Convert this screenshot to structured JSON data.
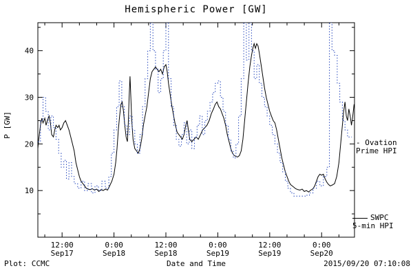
{
  "footer": {
    "left": "Plot: CCMC",
    "right": "2015/09/20 07:10:08"
  },
  "legend": {
    "ovation": {
      "line1": "- Ovation",
      "line2": "Prime HPI",
      "color": "#2244bb"
    },
    "swpc": {
      "line1": "SWPC",
      "line2": "5-min HPI",
      "color": "#000000"
    }
  },
  "chart_data": {
    "type": "line",
    "title": "Hemispheric Power [GW]",
    "xlabel": "Date and Time",
    "ylabel": "P [GW]",
    "x_unit": "hours since Sep17 00:00",
    "xlim_hours": [
      6.4,
      79.6
    ],
    "ylim": [
      0,
      46
    ],
    "grid": false,
    "legend_position": "right-outside",
    "yticks": [
      10,
      20,
      30,
      40
    ],
    "y_minor_ticks": [
      5,
      15,
      25,
      35,
      45
    ],
    "x_minor_step_hours": 4,
    "xticks": [
      {
        "hour": 12,
        "time": "12:00",
        "date": "Sep17"
      },
      {
        "hour": 24,
        "time": "0:00",
        "date": "Sep18"
      },
      {
        "hour": 36,
        "time": "12:00",
        "date": "Sep18"
      },
      {
        "hour": 48,
        "time": "0:00",
        "date": "Sep19"
      },
      {
        "hour": 60,
        "time": "12:00",
        "date": "Sep19"
      },
      {
        "hour": 72,
        "time": "0:00",
        "date": "Sep20"
      }
    ],
    "series": [
      {
        "id": "swpc",
        "name": "SWPC 5-min HPI",
        "color": "#000000",
        "style": "solid",
        "step": false,
        "points": [
          [
            6.4,
            19
          ],
          [
            6.6,
            21
          ],
          [
            7,
            24
          ],
          [
            7.3,
            25.5
          ],
          [
            7.6,
            24.5
          ],
          [
            8,
            25.5
          ],
          [
            8.3,
            24
          ],
          [
            8.6,
            25
          ],
          [
            9,
            26
          ],
          [
            9.3,
            24.5
          ],
          [
            9.6,
            22
          ],
          [
            10,
            21.5
          ],
          [
            10.3,
            23
          ],
          [
            10.6,
            24
          ],
          [
            11,
            23.5
          ],
          [
            11.3,
            24
          ],
          [
            11.6,
            23
          ],
          [
            12,
            23.5
          ],
          [
            12.4,
            24.5
          ],
          [
            12.8,
            25
          ],
          [
            13.2,
            24
          ],
          [
            13.6,
            23
          ],
          [
            14,
            21.5
          ],
          [
            14.4,
            20
          ],
          [
            14.8,
            18.5
          ],
          [
            15.2,
            16
          ],
          [
            15.6,
            14.5
          ],
          [
            16,
            13
          ],
          [
            16.4,
            12
          ],
          [
            16.8,
            11.5
          ],
          [
            17.2,
            11
          ],
          [
            17.6,
            10.5
          ],
          [
            18,
            10.3
          ],
          [
            18.5,
            10.2
          ],
          [
            19,
            10.4
          ],
          [
            19.5,
            10.1
          ],
          [
            20,
            10.3
          ],
          [
            20.5,
            9.8
          ],
          [
            21,
            10.2
          ],
          [
            21.5,
            10
          ],
          [
            22,
            10.3
          ],
          [
            22.5,
            10.1
          ],
          [
            23,
            11
          ],
          [
            23.5,
            12
          ],
          [
            24,
            13.5
          ],
          [
            24.4,
            16
          ],
          [
            24.7,
            19
          ],
          [
            25,
            23
          ],
          [
            25.3,
            26
          ],
          [
            25.6,
            28.5
          ],
          [
            25.9,
            29
          ],
          [
            26.2,
            27
          ],
          [
            26.5,
            24
          ],
          [
            26.8,
            21.5
          ],
          [
            27.1,
            20.5
          ],
          [
            27.3,
            24
          ],
          [
            27.5,
            30
          ],
          [
            27.7,
            34.5
          ],
          [
            27.9,
            30
          ],
          [
            28.1,
            25
          ],
          [
            28.4,
            21
          ],
          [
            28.8,
            19
          ],
          [
            29.2,
            18.5
          ],
          [
            29.6,
            18
          ],
          [
            30,
            19
          ],
          [
            30.4,
            21
          ],
          [
            30.8,
            24
          ],
          [
            31.2,
            26
          ],
          [
            31.6,
            28
          ],
          [
            32,
            31
          ],
          [
            32.4,
            34
          ],
          [
            32.8,
            35.5
          ],
          [
            33.2,
            36
          ],
          [
            33.6,
            36.5
          ],
          [
            34,
            36
          ],
          [
            34.4,
            35.5
          ],
          [
            34.8,
            36
          ],
          [
            35.2,
            35
          ],
          [
            35.6,
            36.5
          ],
          [
            36,
            37
          ],
          [
            36.3,
            35.5
          ],
          [
            36.6,
            33
          ],
          [
            37,
            30.5
          ],
          [
            37.4,
            28
          ],
          [
            37.8,
            26
          ],
          [
            38.2,
            24
          ],
          [
            38.6,
            22.5
          ],
          [
            39,
            22
          ],
          [
            39.4,
            21.5
          ],
          [
            39.8,
            21
          ],
          [
            40.2,
            22
          ],
          [
            40.6,
            24
          ],
          [
            40.9,
            25
          ],
          [
            41.2,
            23
          ],
          [
            41.5,
            21
          ],
          [
            42,
            20.5
          ],
          [
            42.5,
            21
          ],
          [
            43,
            21.5
          ],
          [
            43.5,
            21
          ],
          [
            44,
            22
          ],
          [
            44.5,
            23
          ],
          [
            45,
            23.5
          ],
          [
            45.5,
            24
          ],
          [
            46,
            25
          ],
          [
            46.5,
            26.5
          ],
          [
            47,
            27.5
          ],
          [
            47.4,
            28.5
          ],
          [
            47.8,
            29
          ],
          [
            48.2,
            28
          ],
          [
            48.6,
            27.5
          ],
          [
            49,
            26.5
          ],
          [
            49.4,
            25.5
          ],
          [
            49.8,
            24
          ],
          [
            50.2,
            22
          ],
          [
            50.6,
            20.5
          ],
          [
            51,
            19
          ],
          [
            51.4,
            18
          ],
          [
            51.8,
            17.5
          ],
          [
            52.2,
            17.3
          ],
          [
            52.6,
            17.2
          ],
          [
            53,
            17.5
          ],
          [
            53.4,
            18.5
          ],
          [
            53.8,
            21
          ],
          [
            54.2,
            25
          ],
          [
            54.6,
            29
          ],
          [
            55,
            33
          ],
          [
            55.4,
            36.5
          ],
          [
            55.8,
            39
          ],
          [
            56.1,
            40.5
          ],
          [
            56.4,
            41.5
          ],
          [
            56.7,
            40.5
          ],
          [
            57,
            41.5
          ],
          [
            57.3,
            41
          ],
          [
            57.6,
            39.5
          ],
          [
            58,
            37
          ],
          [
            58.4,
            34.5
          ],
          [
            58.8,
            32
          ],
          [
            59.2,
            30
          ],
          [
            59.6,
            28.5
          ],
          [
            60,
            27
          ],
          [
            60.4,
            26
          ],
          [
            60.8,
            25
          ],
          [
            61.2,
            24.5
          ],
          [
            61.6,
            23
          ],
          [
            62,
            21
          ],
          [
            62.4,
            19
          ],
          [
            62.8,
            17
          ],
          [
            63.2,
            15.5
          ],
          [
            63.6,
            14
          ],
          [
            64,
            13
          ],
          [
            64.4,
            12
          ],
          [
            64.8,
            11.3
          ],
          [
            65.2,
            11
          ],
          [
            65.6,
            10.7
          ],
          [
            66,
            10.4
          ],
          [
            66.5,
            10.2
          ],
          [
            67,
            10.1
          ],
          [
            67.5,
            10.3
          ],
          [
            68,
            9.8
          ],
          [
            68.5,
            10
          ],
          [
            69,
            9.7
          ],
          [
            69.5,
            10.1
          ],
          [
            70,
            10.4
          ],
          [
            70.4,
            11
          ],
          [
            70.8,
            12
          ],
          [
            71.2,
            13
          ],
          [
            71.6,
            13.5
          ],
          [
            72,
            13.3
          ],
          [
            72.4,
            13.5
          ],
          [
            72.8,
            12.5
          ],
          [
            73.2,
            11.8
          ],
          [
            73.6,
            11.3
          ],
          [
            74,
            11
          ],
          [
            74.5,
            11.2
          ],
          [
            75,
            11.5
          ],
          [
            75.5,
            13
          ],
          [
            76,
            16
          ],
          [
            76.4,
            20
          ],
          [
            76.8,
            24
          ],
          [
            77.1,
            27
          ],
          [
            77.4,
            29
          ],
          [
            77.7,
            26
          ],
          [
            78,
            25
          ],
          [
            78.3,
            27.5
          ],
          [
            78.6,
            26
          ],
          [
            78.9,
            24
          ],
          [
            79.2,
            26
          ],
          [
            79.5,
            28.5
          ]
        ]
      },
      {
        "id": "ovation",
        "name": "Ovation Prime HPI",
        "color": "#2244bb",
        "style": "dotted",
        "step": true,
        "points": [
          [
            6.4,
            20.5
          ],
          [
            7,
            25
          ],
          [
            7.6,
            30
          ],
          [
            8.2,
            27
          ],
          [
            8.8,
            23
          ],
          [
            9.4,
            26
          ],
          [
            10,
            23.5
          ],
          [
            10.6,
            21
          ],
          [
            11.2,
            18
          ],
          [
            11.8,
            15
          ],
          [
            12.4,
            16.5
          ],
          [
            13,
            12.5
          ],
          [
            13.6,
            16
          ],
          [
            14.2,
            13
          ],
          [
            14.8,
            11.5
          ],
          [
            15.6,
            10.5
          ],
          [
            16.4,
            12
          ],
          [
            17.2,
            10
          ],
          [
            18,
            11.5
          ],
          [
            18.8,
            9.5
          ],
          [
            19.6,
            11
          ],
          [
            20.4,
            10
          ],
          [
            21.2,
            12
          ],
          [
            22,
            10.5
          ],
          [
            22.8,
            13
          ],
          [
            23.4,
            18
          ],
          [
            24,
            23
          ],
          [
            24.6,
            28
          ],
          [
            25.2,
            33.5
          ],
          [
            25.8,
            28
          ],
          [
            26.4,
            24
          ],
          [
            27,
            22
          ],
          [
            27.6,
            26
          ],
          [
            28.2,
            23
          ],
          [
            28.8,
            20
          ],
          [
            29.4,
            18
          ],
          [
            30,
            22
          ],
          [
            30.6,
            28
          ],
          [
            31.2,
            34
          ],
          [
            31.8,
            40
          ],
          [
            32.4,
            46
          ],
          [
            33,
            40
          ],
          [
            33.6,
            36
          ],
          [
            34.2,
            31
          ],
          [
            34.8,
            34
          ],
          [
            35.4,
            40
          ],
          [
            36,
            46
          ],
          [
            36.6,
            34
          ],
          [
            37.2,
            28
          ],
          [
            37.8,
            24
          ],
          [
            38.4,
            21
          ],
          [
            39,
            19.5
          ],
          [
            39.6,
            22
          ],
          [
            40.2,
            24.5
          ],
          [
            40.8,
            20
          ],
          [
            41.4,
            23
          ],
          [
            42,
            19
          ],
          [
            42.6,
            21.5
          ],
          [
            43.2,
            24
          ],
          [
            43.8,
            26
          ],
          [
            44.4,
            22
          ],
          [
            45,
            25
          ],
          [
            45.6,
            27
          ],
          [
            46.2,
            29
          ],
          [
            46.8,
            31
          ],
          [
            47.4,
            33
          ],
          [
            48,
            33.5
          ],
          [
            48.6,
            30
          ],
          [
            49.2,
            27
          ],
          [
            49.8,
            24
          ],
          [
            50.4,
            21
          ],
          [
            51,
            18.5
          ],
          [
            51.6,
            17
          ],
          [
            52.2,
            20
          ],
          [
            52.8,
            26
          ],
          [
            53.4,
            34
          ],
          [
            54,
            46
          ],
          [
            54.6,
            38
          ],
          [
            55.2,
            46
          ],
          [
            55.8,
            40
          ],
          [
            56.4,
            34
          ],
          [
            57,
            37
          ],
          [
            57.6,
            33
          ],
          [
            58.2,
            30
          ],
          [
            58.8,
            28
          ],
          [
            59.4,
            26
          ],
          [
            60,
            24
          ],
          [
            60.6,
            22
          ],
          [
            61.2,
            20
          ],
          [
            61.8,
            18
          ],
          [
            62.4,
            16
          ],
          [
            63,
            14
          ],
          [
            63.6,
            12
          ],
          [
            64.2,
            10.5
          ],
          [
            64.8,
            9.5
          ],
          [
            65.6,
            8.8
          ],
          [
            67,
            8.8
          ],
          [
            68.4,
            9
          ],
          [
            69.2,
            9.5
          ],
          [
            70,
            10.5
          ],
          [
            70.8,
            12
          ],
          [
            71.6,
            11
          ],
          [
            72.4,
            13
          ],
          [
            73.2,
            15
          ],
          [
            73.8,
            46
          ],
          [
            74.4,
            40
          ],
          [
            75,
            39
          ],
          [
            75.6,
            33
          ],
          [
            76.2,
            29
          ],
          [
            76.8,
            25
          ],
          [
            77.4,
            23
          ],
          [
            78,
            21.5
          ],
          [
            79,
            21.5
          ]
        ]
      }
    ]
  }
}
